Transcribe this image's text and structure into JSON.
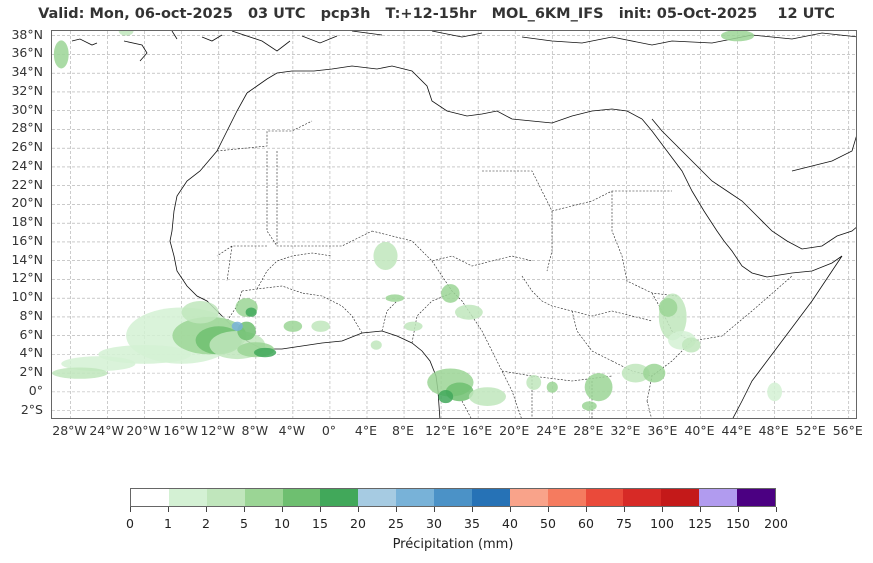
{
  "title": "Valid: Mon, 06-oct-2025   03 UTC   pcp3h   T:+12-15hr   MOL_6KM_IFS   init: 05-Oct-2025    12 UTC",
  "map": {
    "lat_labels": [
      "38°N",
      "36°N",
      "34°N",
      "32°N",
      "30°N",
      "28°N",
      "26°N",
      "24°N",
      "22°N",
      "20°N",
      "18°N",
      "16°N",
      "14°N",
      "12°N",
      "10°N",
      "8°N",
      "6°N",
      "4°N",
      "2°N",
      "0°",
      "2°S"
    ],
    "lon_labels": [
      "28°W",
      "24°W",
      "20°W",
      "16°W",
      "12°W",
      "8°W",
      "4°W",
      "0°",
      "4°E",
      "8°E",
      "12°E",
      "16°E",
      "20°E",
      "24°E",
      "28°E",
      "32°E",
      "36°E",
      "40°E",
      "44°E",
      "48°E",
      "52°E",
      "56°E"
    ],
    "gridlines": true,
    "lat_range": [
      -3,
      38.5
    ],
    "lon_range": [
      -30,
      57
    ]
  },
  "colorbar": {
    "label": "Précipitation (mm)",
    "ticks": [
      "0",
      "1",
      "2",
      "5",
      "10",
      "15",
      "20",
      "25",
      "30",
      "35",
      "40",
      "50",
      "60",
      "75",
      "100",
      "125",
      "150",
      "200"
    ],
    "colors": [
      "#ffffff",
      "#d4f1d4",
      "#c0e6bc",
      "#9bd595",
      "#6ebf70",
      "#41a85a",
      "#a6cbe2",
      "#78b2d8",
      "#4b92c7",
      "#2672b6",
      "#f9a38a",
      "#f57b5f",
      "#ea4a3a",
      "#d72a26",
      "#c41919",
      "#b19bef",
      "#4b0082"
    ]
  }
}
